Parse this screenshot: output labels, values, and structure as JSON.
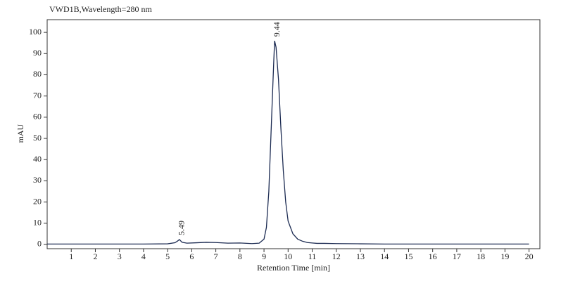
{
  "chart_data": {
    "type": "line",
    "title": "VWD1B,Wavelength=280 nm",
    "x_label": "Retention Time [min]",
    "y_label": "mAU",
    "x": [
      0,
      1,
      2,
      3,
      4,
      5,
      5.3,
      5.4,
      5.49,
      5.6,
      5.8,
      6.2,
      6.6,
      7,
      7.5,
      8,
      8.5,
      8.8,
      9.0,
      9.1,
      9.2,
      9.3,
      9.4,
      9.44,
      9.5,
      9.6,
      9.7,
      9.8,
      9.9,
      10.0,
      10.2,
      10.4,
      10.6,
      10.8,
      11,
      11.2,
      11.5,
      12,
      13,
      14,
      16,
      18,
      20
    ],
    "series": [
      {
        "color": "#1c2b52",
        "values": [
          0.2,
          0.2,
          0.2,
          0.2,
          0.2,
          0.3,
          0.8,
          1.5,
          2.3,
          1.0,
          0.6,
          0.8,
          1.0,
          0.9,
          0.6,
          0.7,
          0.4,
          0.6,
          2.5,
          8,
          25,
          55,
          85,
          96,
          93,
          78,
          55,
          35,
          20,
          11,
          5,
          2.5,
          1.5,
          0.9,
          0.7,
          0.5,
          0.5,
          0.4,
          0.3,
          0.2,
          0.2,
          0.2,
          0.2
        ]
      }
    ],
    "annotations": [
      {
        "text": "5.49",
        "x": 5.49
      },
      {
        "text": "9.44",
        "x": 9.44
      }
    ],
    "xlim": [
      0,
      20.45
    ],
    "ylim": [
      -2,
      106
    ],
    "xticks": [
      1,
      2,
      3,
      4,
      5,
      6,
      7,
      8,
      9,
      10,
      11,
      12,
      13,
      14,
      15,
      16,
      17,
      18,
      19,
      20
    ],
    "yticks": [
      0,
      10,
      20,
      30,
      40,
      50,
      60,
      70,
      80,
      90,
      100
    ],
    "grid": false
  }
}
